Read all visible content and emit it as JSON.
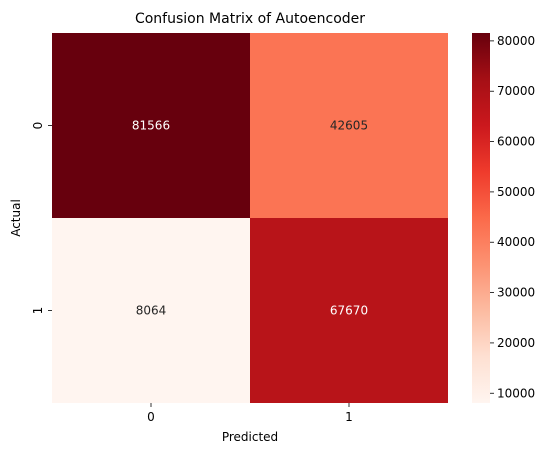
{
  "chart_data": {
    "type": "heatmap",
    "title": "Confusion Matrix of Autoencoder",
    "xlabel": "Predicted",
    "ylabel": "Actual",
    "x_categories": [
      "0",
      "1"
    ],
    "y_categories": [
      "0",
      "1"
    ],
    "values": [
      [
        81566,
        42605
      ],
      [
        8064,
        67670
      ]
    ],
    "colormap": "Reds",
    "colorbar": {
      "min": 8064,
      "max": 81566,
      "ticks": [
        10000,
        20000,
        30000,
        40000,
        50000,
        60000,
        70000,
        80000
      ],
      "tick_labels": [
        "10000",
        "20000",
        "30000",
        "40000",
        "50000",
        "60000",
        "70000",
        "80000"
      ]
    },
    "grid": false,
    "legend": "colorbar-right"
  }
}
